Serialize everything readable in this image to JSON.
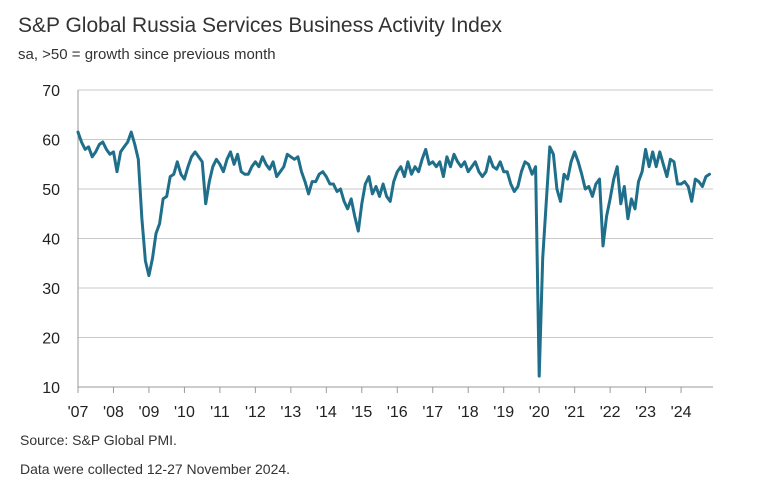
{
  "title": "S&P Global Russia Services Business Activity Index",
  "subtitle": "sa, >50 = growth since previous month",
  "source": "Source: S&P Global PMI.",
  "note": "Data were collected 12-27 November 2024.",
  "colors": {
    "line": "#1f6f8b",
    "grid": "#c9c9c9",
    "axis": "#9a9a9a",
    "text": "#222222"
  },
  "chart_data": {
    "type": "line",
    "title": "S&P Global Russia Services Business Activity Index",
    "subtitle": "sa, >50 = growth since previous month",
    "xlabel": "",
    "ylabel": "",
    "ylim": [
      10,
      70
    ],
    "yticks": [
      10,
      20,
      30,
      40,
      50,
      60,
      70
    ],
    "xlim": [
      2007.0,
      2024.9
    ],
    "xticks": [
      {
        "x": 2007,
        "label": "'07"
      },
      {
        "x": 2008,
        "label": "'08"
      },
      {
        "x": 2009,
        "label": "'09"
      },
      {
        "x": 2010,
        "label": "'10"
      },
      {
        "x": 2011,
        "label": "'11"
      },
      {
        "x": 2012,
        "label": "'12"
      },
      {
        "x": 2013,
        "label": "'13"
      },
      {
        "x": 2014,
        "label": "'14"
      },
      {
        "x": 2015,
        "label": "'15"
      },
      {
        "x": 2016,
        "label": "'16"
      },
      {
        "x": 2017,
        "label": "'17"
      },
      {
        "x": 2018,
        "label": "'18"
      },
      {
        "x": 2019,
        "label": "'19"
      },
      {
        "x": 2020,
        "label": "'20"
      },
      {
        "x": 2021,
        "label": "'21"
      },
      {
        "x": 2022,
        "label": "'22"
      },
      {
        "x": 2023,
        "label": "'23"
      },
      {
        "x": 2024,
        "label": "'24"
      }
    ],
    "grid": "horizontal",
    "legend": "none",
    "series": [
      {
        "x": [
          2007.0,
          2007.1,
          2007.2,
          2007.3,
          2007.4,
          2007.5,
          2007.6,
          2007.7,
          2007.8,
          2007.9,
          2008.0,
          2008.1,
          2008.2,
          2008.3,
          2008.4,
          2008.5,
          2008.6,
          2008.7,
          2008.8,
          2008.9,
          2009.0,
          2009.1,
          2009.2,
          2009.3,
          2009.4,
          2009.5,
          2009.6,
          2009.7,
          2009.8,
          2009.9,
          2010.0,
          2010.1,
          2010.2,
          2010.3,
          2010.4,
          2010.5,
          2010.6,
          2010.7,
          2010.8,
          2010.9,
          2011.0,
          2011.1,
          2011.2,
          2011.3,
          2011.4,
          2011.5,
          2011.6,
          2011.7,
          2011.8,
          2011.9,
          2012.0,
          2012.1,
          2012.2,
          2012.3,
          2012.4,
          2012.5,
          2012.6,
          2012.7,
          2012.8,
          2012.9,
          2013.0,
          2013.1,
          2013.2,
          2013.3,
          2013.4,
          2013.5,
          2013.6,
          2013.7,
          2013.8,
          2013.9,
          2014.0,
          2014.1,
          2014.2,
          2014.3,
          2014.4,
          2014.5,
          2014.6,
          2014.7,
          2014.8,
          2014.9,
          2015.0,
          2015.1,
          2015.2,
          2015.3,
          2015.4,
          2015.5,
          2015.6,
          2015.7,
          2015.8,
          2015.9,
          2016.0,
          2016.1,
          2016.2,
          2016.3,
          2016.4,
          2016.5,
          2016.6,
          2016.7,
          2016.8,
          2016.9,
          2017.0,
          2017.1,
          2017.2,
          2017.3,
          2017.4,
          2017.5,
          2017.6,
          2017.7,
          2017.8,
          2017.9,
          2018.0,
          2018.1,
          2018.2,
          2018.3,
          2018.4,
          2018.5,
          2018.6,
          2018.7,
          2018.8,
          2018.9,
          2019.0,
          2019.1,
          2019.2,
          2019.3,
          2019.4,
          2019.5,
          2019.6,
          2019.7,
          2019.8,
          2019.9,
          2020.0,
          2020.1,
          2020.2,
          2020.3,
          2020.4,
          2020.5,
          2020.6,
          2020.7,
          2020.8,
          2020.9,
          2021.0,
          2021.1,
          2021.2,
          2021.3,
          2021.4,
          2021.5,
          2021.6,
          2021.7,
          2021.8,
          2021.9,
          2022.0,
          2022.1,
          2022.2,
          2022.3,
          2022.4,
          2022.5,
          2022.6,
          2022.7,
          2022.8,
          2022.9,
          2023.0,
          2023.1,
          2023.2,
          2023.3,
          2023.4,
          2023.5,
          2023.6,
          2023.7,
          2023.8,
          2023.9,
          2024.0,
          2024.1,
          2024.2,
          2024.3,
          2024.4,
          2024.5,
          2024.6,
          2024.7,
          2024.8
        ],
        "values": [
          61.5,
          59.5,
          58.0,
          58.5,
          56.5,
          57.5,
          59.0,
          59.5,
          58.0,
          57.0,
          57.5,
          53.5,
          57.5,
          58.5,
          59.5,
          61.5,
          59.0,
          56.0,
          44.0,
          35.5,
          32.5,
          36.0,
          41.0,
          43.0,
          48.0,
          48.5,
          52.5,
          53.0,
          55.5,
          53.0,
          52.0,
          54.5,
          56.5,
          57.5,
          56.5,
          55.5,
          47.0,
          51.5,
          54.5,
          56.0,
          55.0,
          53.5,
          56.0,
          57.5,
          55.0,
          57.0,
          53.5,
          53.0,
          53.0,
          54.5,
          55.5,
          54.5,
          56.5,
          55.0,
          54.0,
          55.5,
          52.5,
          53.5,
          54.5,
          57.0,
          56.5,
          56.0,
          56.5,
          53.5,
          51.5,
          49.0,
          51.5,
          51.5,
          53.0,
          53.5,
          52.5,
          51.0,
          51.0,
          49.5,
          50.0,
          47.5,
          46.0,
          48.0,
          44.5,
          41.5,
          47.0,
          51.0,
          52.5,
          49.0,
          50.5,
          48.5,
          51.0,
          48.5,
          47.5,
          51.5,
          53.5,
          54.5,
          52.5,
          55.5,
          53.0,
          54.5,
          53.5,
          56.0,
          58.0,
          55.0,
          55.5,
          54.5,
          55.5,
          52.5,
          56.5,
          54.5,
          57.0,
          55.5,
          54.5,
          55.5,
          53.5,
          54.5,
          55.5,
          53.5,
          52.5,
          53.5,
          56.5,
          54.5,
          54.0,
          55.5,
          53.5,
          53.5,
          51.0,
          49.5,
          50.5,
          53.5,
          55.5,
          55.0,
          53.0,
          54.5,
          12.2,
          36.0,
          47.5,
          58.5,
          57.0,
          50.0,
          47.5,
          53.0,
          52.0,
          55.5,
          57.5,
          55.5,
          53.0,
          50.0,
          50.5,
          48.5,
          51.0,
          52.0,
          38.5,
          44.5,
          48.0,
          52.0,
          54.5,
          47.0,
          50.5,
          44.0,
          48.0,
          46.0,
          51.5,
          53.5,
          58.0,
          54.5,
          57.5,
          54.5,
          57.5,
          55.0,
          52.5,
          56.0,
          55.5,
          51.0,
          51.0,
          51.5,
          50.5,
          47.5,
          52.0,
          51.5,
          50.5,
          52.5,
          53.0
        ]
      }
    ]
  }
}
